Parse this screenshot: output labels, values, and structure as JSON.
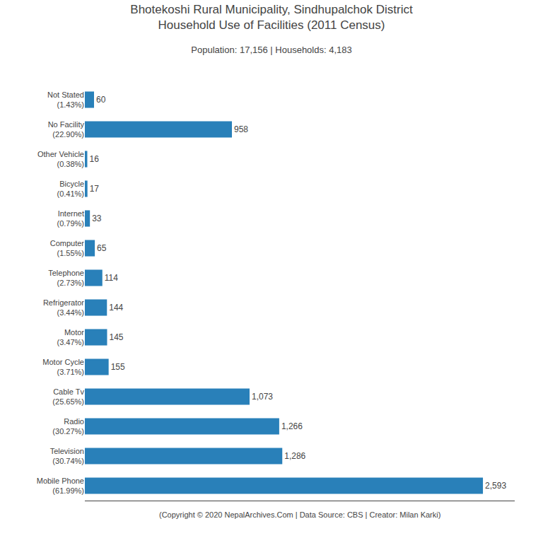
{
  "chart_data": {
    "type": "bar",
    "orientation": "horizontal",
    "title": "Bhotekoshi Rural Municipality, Sindhupalchok District\nHousehold Use of Facilities (2011 Census)",
    "subtitle": "Population: 17,156 | Households: 4,183",
    "annotations": [
      "(Copyright © 2020 NepalArchives.Com | Data Source: CBS | Creator: Milan Karki)"
    ],
    "categories": [
      "Not Stated\n(1.43%)",
      "No Facility\n(22.90%)",
      "Other Vehicle\n(0.38%)",
      "Bicycle\n(0.41%)",
      "Internet\n(0.79%)",
      "Computer\n(1.55%)",
      "Telephone\n(2.73%)",
      "Refrigerator\n(3.44%)",
      "Motor\n(3.47%)",
      "Motor Cycle\n(3.71%)",
      "Cable Tv\n(25.65%)",
      "Radio\n(30.27%)",
      "Television\n(30.74%)",
      "Mobile Phone\n(61.99%)"
    ],
    "values": [
      60,
      958,
      16,
      17,
      33,
      65,
      114,
      144,
      145,
      155,
      1073,
      1266,
      1286,
      2593
    ],
    "value_labels": [
      "60",
      "958",
      "16",
      "17",
      "33",
      "65",
      "114",
      "144",
      "145",
      "155",
      "1,073",
      "1,266",
      "1,286",
      "2,593"
    ],
    "data_labels": true,
    "color": "#2980b9",
    "xlim": [
      0,
      2800
    ],
    "grid": false,
    "tick_labels": "y"
  }
}
